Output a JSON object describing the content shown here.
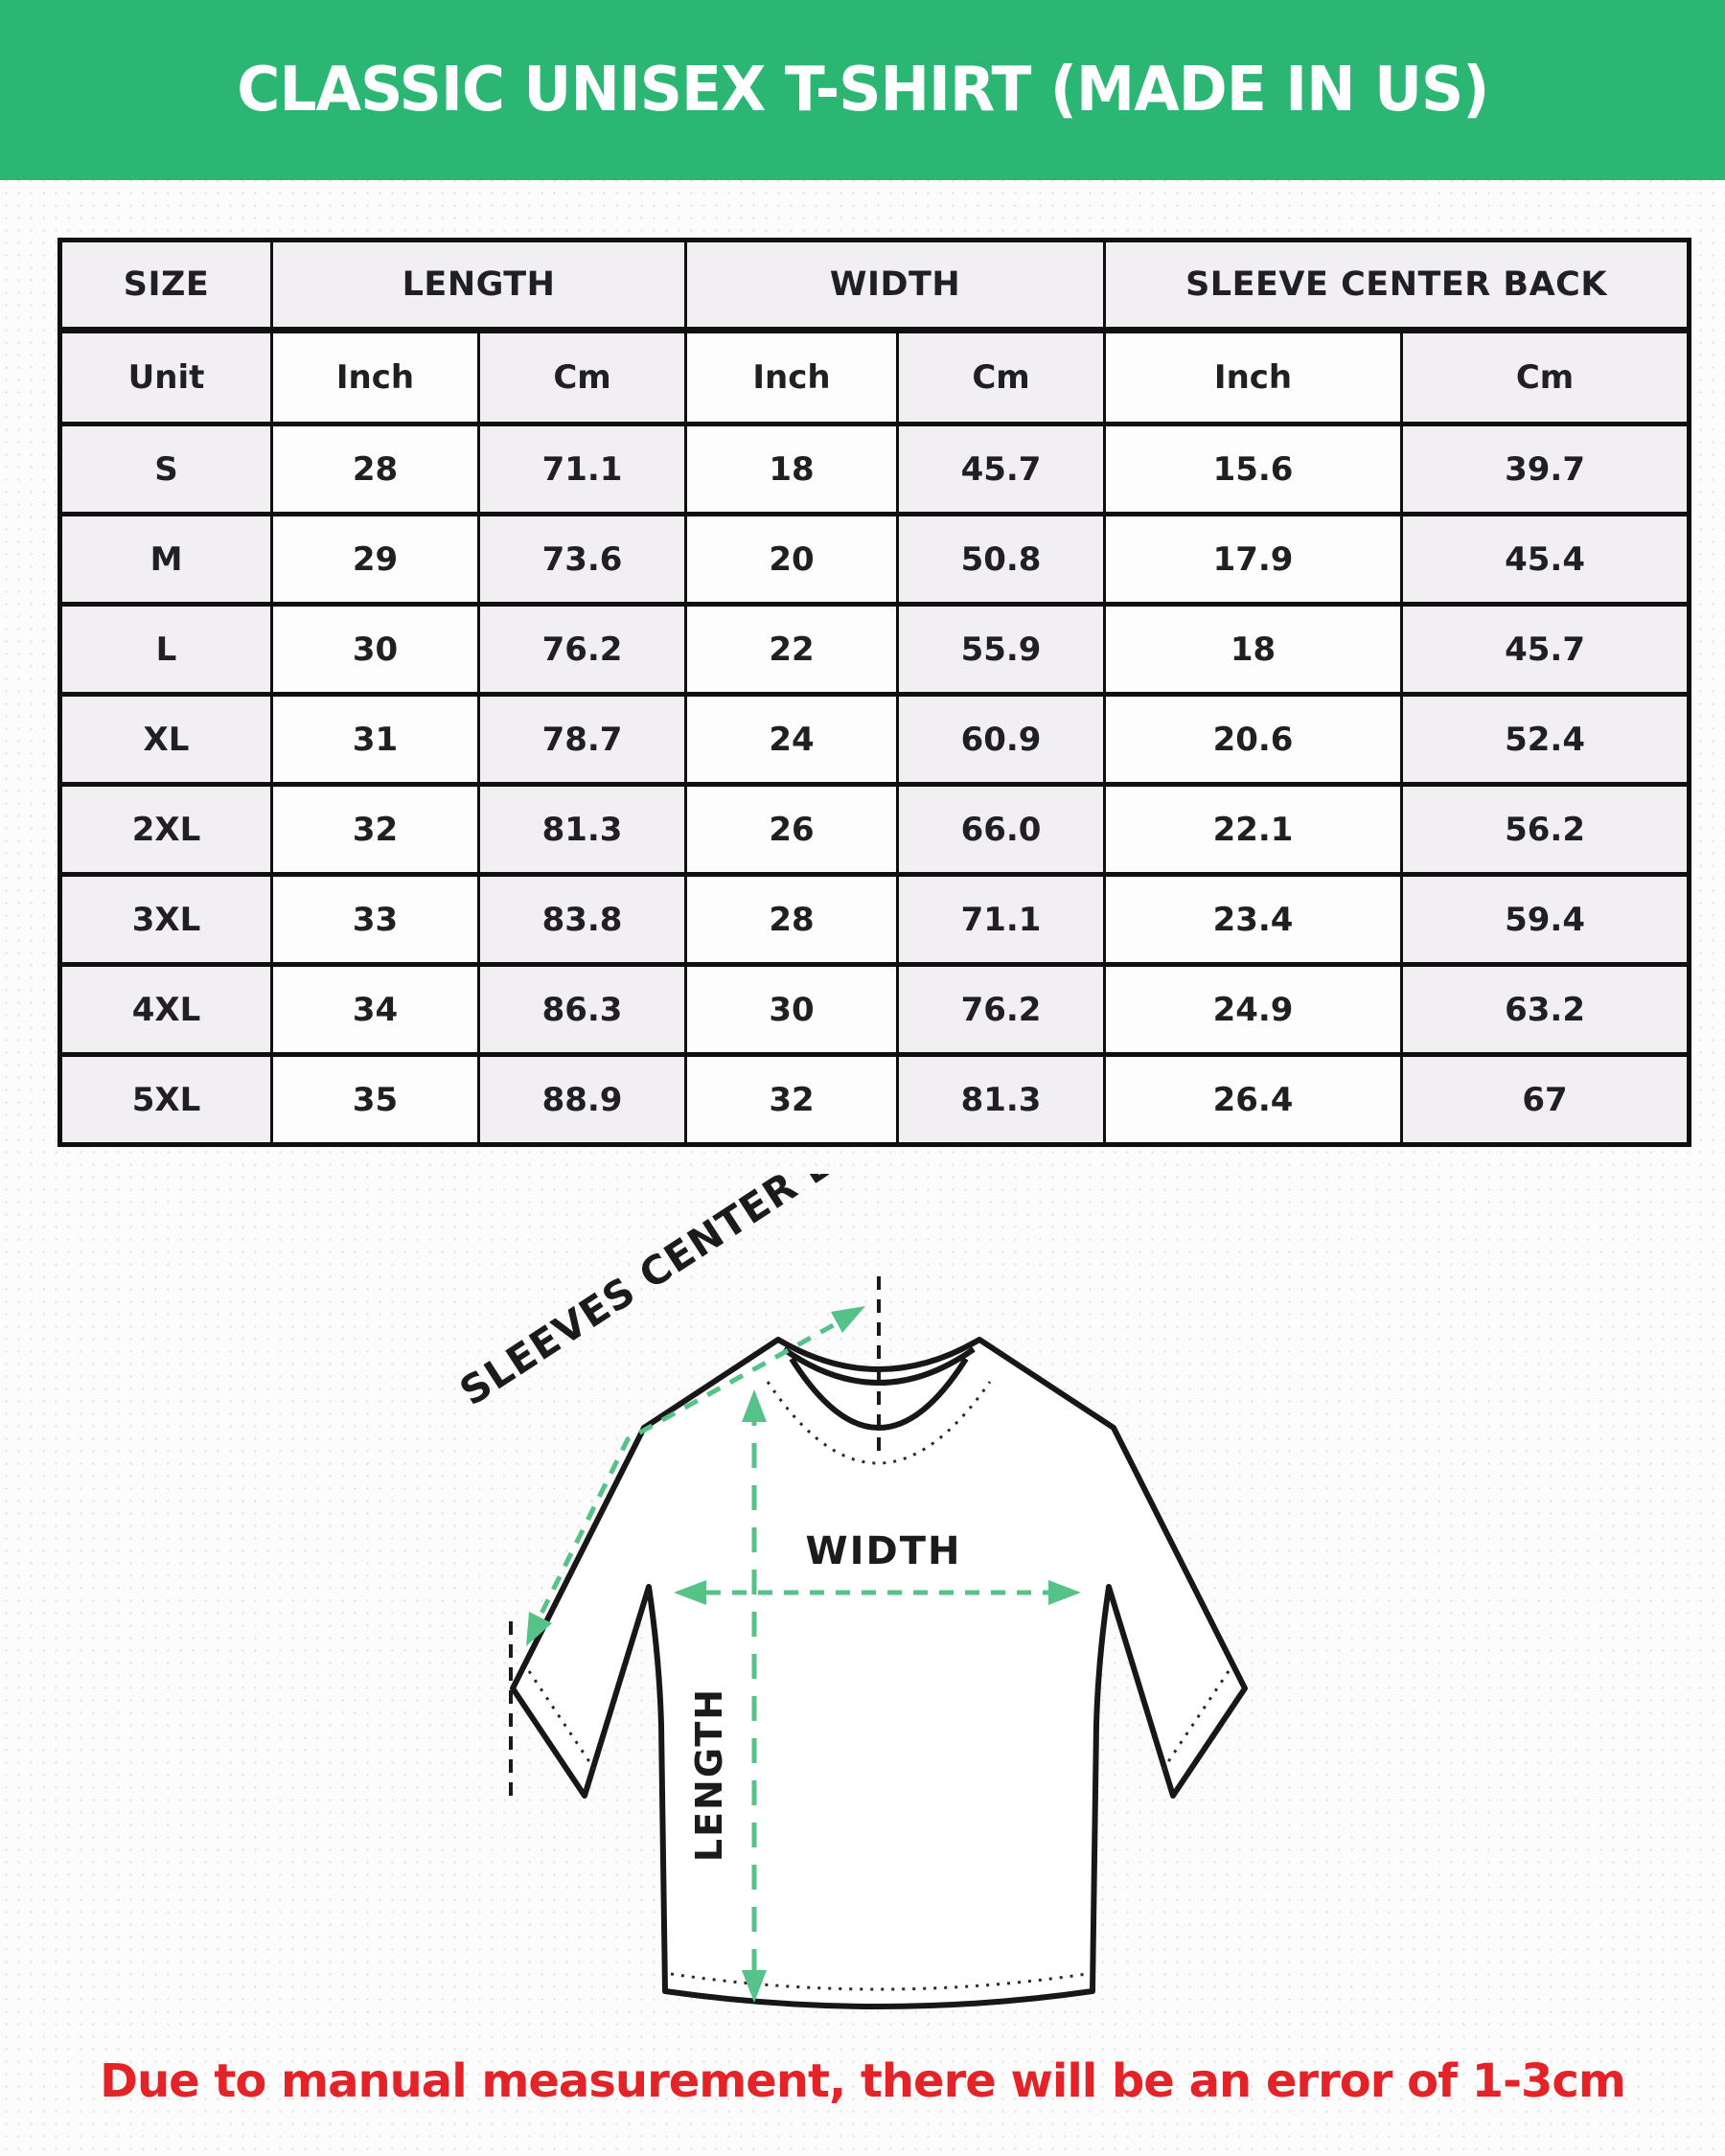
{
  "banner": {
    "title": "CLASSIC UNISEX T-SHIRT (MADE IN US)",
    "background_color": "#2bb673",
    "text_color": "#ffffff"
  },
  "table": {
    "header_groups": [
      {
        "label": "SIZE",
        "span": 1
      },
      {
        "label": "LENGTH",
        "span": 2
      },
      {
        "label": "WIDTH",
        "span": 2
      },
      {
        "label": "SLEEVE CENTER BACK",
        "span": 2
      }
    ],
    "unit_row": [
      "Unit",
      "Inch",
      "Cm",
      "Inch",
      "Cm",
      "Inch",
      "Cm"
    ],
    "rows": [
      [
        "S",
        "28",
        "71.1",
        "18",
        "45.7",
        "15.6",
        "39.7"
      ],
      [
        "M",
        "29",
        "73.6",
        "20",
        "50.8",
        "17.9",
        "45.4"
      ],
      [
        "L",
        "30",
        "76.2",
        "22",
        "55.9",
        "18",
        "45.7"
      ],
      [
        "XL",
        "31",
        "78.7",
        "24",
        "60.9",
        "20.6",
        "52.4"
      ],
      [
        "2XL",
        "32",
        "81.3",
        "26",
        "66.0",
        "22.1",
        "56.2"
      ],
      [
        "3XL",
        "33",
        "83.8",
        "28",
        "71.1",
        "23.4",
        "59.4"
      ],
      [
        "4XL",
        "34",
        "86.3",
        "30",
        "76.2",
        "24.9",
        "63.2"
      ],
      [
        "5XL",
        "35",
        "88.9",
        "32",
        "81.3",
        "26.4",
        "67"
      ]
    ]
  },
  "diagram": {
    "sleeves_label": "SLEEVES CENTER BACK",
    "width_label": "WIDTH",
    "length_label": "LENGTH",
    "arrow_color": "#55c287",
    "outline_color": "#17171a"
  },
  "note": {
    "text": "Due to manual measurement, there will be an error of 1-3cm",
    "color": "#e42328"
  }
}
